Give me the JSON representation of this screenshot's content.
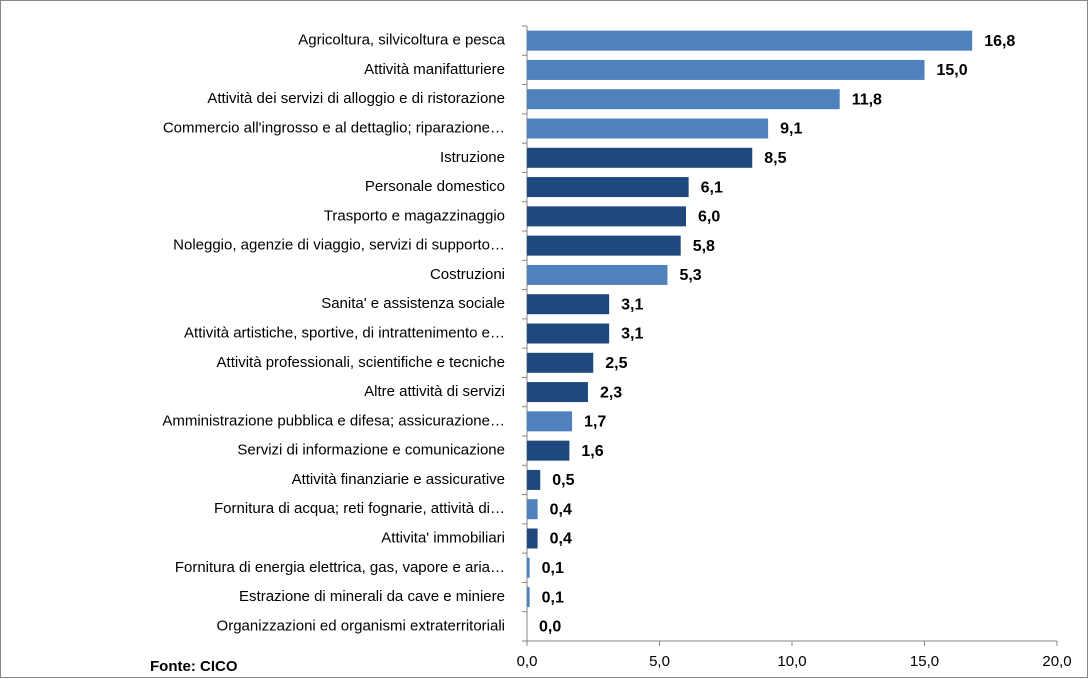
{
  "chart_data": {
    "type": "barh",
    "categories": [
      "Agricoltura, silvicoltura e pesca",
      "Attività manifatturiere",
      "Attività dei servizi di alloggio e di ristorazione",
      "Commercio all'ingrosso e al dettaglio; riparazione…",
      "Istruzione",
      "Personale domestico",
      "Trasporto e magazzinaggio",
      "Noleggio, agenzie di viaggio, servizi di supporto…",
      "Costruzioni",
      "Sanita' e assistenza sociale",
      "Attività artistiche, sportive, di intrattenimento e…",
      "Attività professionali, scientifiche e tecniche",
      "Altre attività di servizi",
      "Amministrazione pubblica e difesa; assicurazione…",
      "Servizi di informazione e comunicazione",
      "Attività finanziarie e assicurative",
      "Fornitura di acqua; reti fognarie, attività di…",
      "Attivita' immobiliari",
      "Fornitura di energia elettrica, gas, vapore e aria…",
      "Estrazione di minerali da cave e miniere",
      "Organizzazioni ed organismi extraterritoriali"
    ],
    "values": [
      16.8,
      15.0,
      11.8,
      9.1,
      8.5,
      6.1,
      6.0,
      5.8,
      5.3,
      3.1,
      3.1,
      2.5,
      2.3,
      1.7,
      1.6,
      0.5,
      0.4,
      0.4,
      0.1,
      0.1,
      0.0
    ],
    "value_labels": [
      "16,8",
      "15,0",
      "11,8",
      "9,1",
      "8,5",
      "6,1",
      "6,0",
      "5,8",
      "5,3",
      "3,1",
      "3,1",
      "2,5",
      "2,3",
      "1,7",
      "1,6",
      "0,5",
      "0,4",
      "0,4",
      "0,1",
      "0,1",
      "0,0"
    ],
    "colors": [
      "#4f81bd",
      "#4f81bd",
      "#4f81bd",
      "#4f81bd",
      "#1f497d",
      "#1f497d",
      "#1f497d",
      "#1f497d",
      "#4f81bd",
      "#1f497d",
      "#1f497d",
      "#1f497d",
      "#1f497d",
      "#4f81bd",
      "#1f497d",
      "#1f497d",
      "#4f81bd",
      "#1f497d",
      "#4f81bd",
      "#4f81bd",
      "#1f497d"
    ],
    "xlim": [
      0,
      20
    ],
    "xticks": [
      {
        "value": 0,
        "label": "0,0"
      },
      {
        "value": 5,
        "label": "5,0"
      },
      {
        "value": 10,
        "label": "10,0"
      },
      {
        "value": 15,
        "label": "15,0"
      },
      {
        "value": 20,
        "label": "20,0"
      }
    ],
    "source": "Fonte: CICO"
  }
}
